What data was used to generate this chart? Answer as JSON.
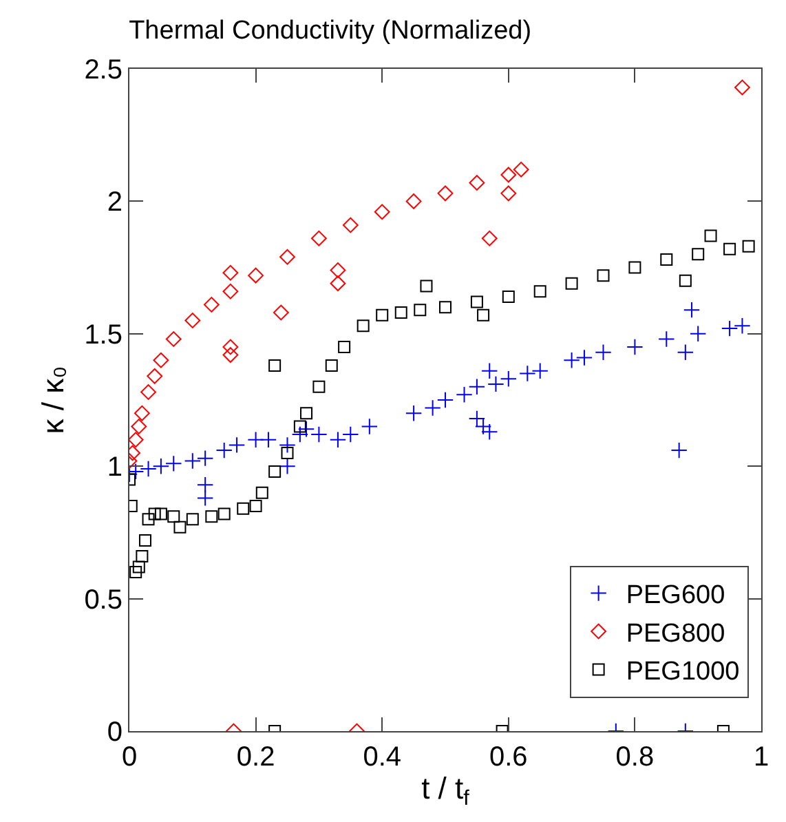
{
  "chart_data": {
    "type": "scatter",
    "title": "Thermal Conductivity (Normalized)",
    "xlabel": "t / t$_{f}$",
    "ylabel": "κ / κ₀",
    "xlim": [
      0,
      1
    ],
    "xticks": [
      0,
      0.2,
      0.4,
      0.6,
      0.8,
      1
    ],
    "ylim": [
      0,
      2.5
    ],
    "yticks": [
      0,
      0.5,
      1,
      1.5,
      2,
      2.5
    ],
    "grid": false,
    "legend": "bottom right",
    "series": [
      {
        "name": "PEG600",
        "color": "#0000ff",
        "marker": "cross",
        "x": [
          0,
          0.01,
          0.03,
          0.05,
          0.07,
          0.1,
          0.12,
          0.15,
          0.17,
          0.2,
          0.22,
          0.25,
          0.27,
          0.28,
          0.3,
          0.33,
          0.35,
          0.38,
          0.45,
          0.48,
          0.5,
          0.53,
          0.55,
          0.58,
          0.6,
          0.63,
          0.65,
          0.7,
          0.72,
          0.75,
          0.8,
          0.85,
          0.9,
          0.95,
          0.97,
          0.12,
          0.12,
          0.25,
          0.55,
          0.56,
          0.57,
          0.57,
          0.87,
          0.89,
          0.88,
          0.77,
          0.88
        ],
        "values": [
          0.97,
          0.98,
          0.99,
          1.0,
          1.01,
          1.02,
          1.03,
          1.06,
          1.08,
          1.1,
          1.1,
          1.08,
          1.12,
          1.14,
          1.12,
          1.1,
          1.12,
          1.15,
          1.2,
          1.22,
          1.25,
          1.27,
          1.3,
          1.31,
          1.33,
          1.35,
          1.36,
          1.4,
          1.41,
          1.43,
          1.45,
          1.48,
          1.5,
          1.52,
          1.53,
          0.93,
          0.88,
          1.0,
          1.18,
          1.15,
          1.13,
          1.36,
          1.06,
          1.59,
          1.43,
          0,
          0
        ]
      },
      {
        "name": "PEG800",
        "color": "#ff0000",
        "marker": "diamond",
        "x": [
          0,
          0.005,
          0.01,
          0.015,
          0.02,
          0.03,
          0.04,
          0.05,
          0.07,
          0.1,
          0.13,
          0.16,
          0.2,
          0.25,
          0.3,
          0.35,
          0.4,
          0.45,
          0.5,
          0.55,
          0.6,
          0.62,
          0.16,
          0.16,
          0.16,
          0.24,
          0.33,
          0.33,
          0.57,
          0.6,
          0.165,
          0.36,
          0.97
        ],
        "values": [
          1.02,
          1.05,
          1.1,
          1.15,
          1.2,
          1.28,
          1.34,
          1.4,
          1.48,
          1.55,
          1.61,
          1.66,
          1.72,
          1.79,
          1.86,
          1.91,
          1.96,
          2.0,
          2.03,
          2.07,
          2.1,
          2.12,
          1.73,
          1.45,
          1.42,
          1.58,
          1.69,
          1.74,
          1.86,
          2.03,
          0,
          0,
          2.43
        ]
      },
      {
        "name": "PEG1000",
        "color": "#000000",
        "marker": "square",
        "x": [
          0,
          0.003,
          0.01,
          0.015,
          0.02,
          0.025,
          0.03,
          0.04,
          0.05,
          0.07,
          0.1,
          0.13,
          0.15,
          0.18,
          0.2,
          0.21,
          0.23,
          0.25,
          0.27,
          0.28,
          0.3,
          0.32,
          0.34,
          0.37,
          0.4,
          0.43,
          0.46,
          0.5,
          0.55,
          0.6,
          0.65,
          0.7,
          0.75,
          0.8,
          0.85,
          0.9,
          0.95,
          0.98,
          0.23,
          0.47,
          0.56,
          0.92,
          0.88,
          0.08,
          0.23,
          0.59,
          0.94
        ],
        "values": [
          0.95,
          0.85,
          0.6,
          0.62,
          0.66,
          0.72,
          0.8,
          0.82,
          0.82,
          0.81,
          0.8,
          0.81,
          0.82,
          0.84,
          0.85,
          0.9,
          0.98,
          1.05,
          1.15,
          1.2,
          1.3,
          1.38,
          1.45,
          1.53,
          1.57,
          1.58,
          1.59,
          1.6,
          1.62,
          1.64,
          1.66,
          1.69,
          1.72,
          1.75,
          1.78,
          1.8,
          1.82,
          1.83,
          1.38,
          1.68,
          1.57,
          1.87,
          1.7,
          0.77,
          0,
          0,
          0
        ]
      }
    ]
  }
}
